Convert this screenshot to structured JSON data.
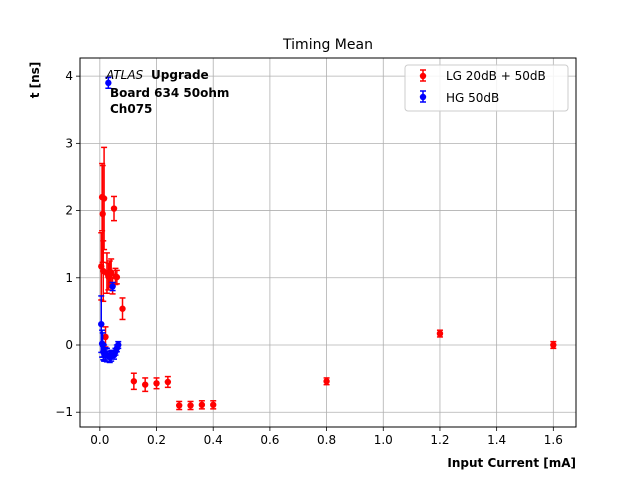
{
  "chart_data": {
    "type": "scatter",
    "title": "Timing Mean",
    "xlabel": "Input Current [mA]",
    "ylabel": "t [ns]",
    "xlim": [
      -0.07,
      1.68
    ],
    "ylim": [
      -1.22,
      4.27
    ],
    "xticks": [
      0.0,
      0.2,
      0.4,
      0.6,
      0.8,
      1.0,
      1.2,
      1.4,
      1.6
    ],
    "xtick_labels": [
      "0.0",
      "0.2",
      "0.4",
      "0.6",
      "0.8",
      "1.0",
      "1.2",
      "1.4",
      "1.6"
    ],
    "yticks": [
      -1,
      0,
      1,
      2,
      3,
      4
    ],
    "ytick_labels": [
      "−1",
      "0",
      "1",
      "2",
      "3",
      "4"
    ],
    "grid": true,
    "legend_position": "top-right",
    "annotation": {
      "italic_part": "ATLAS",
      "bold_part": "Upgrade",
      "line2": "Board 634 50ohm",
      "line3": "Ch075"
    },
    "series": [
      {
        "name": "LG 20dB + 50dB",
        "color": "#ff0000",
        "x": [
          0.005,
          0.008,
          0.01,
          0.012,
          0.015,
          0.02,
          0.025,
          0.03,
          0.035,
          0.04,
          0.045,
          0.05,
          0.055,
          0.06,
          0.08,
          0.12,
          0.16,
          0.2,
          0.24,
          0.28,
          0.32,
          0.36,
          0.4,
          0.8,
          1.2,
          1.6
        ],
        "y": [
          1.17,
          2.2,
          1.95,
          1.1,
          2.18,
          0.12,
          1.07,
          1.02,
          1.05,
          1.08,
          0.88,
          2.03,
          1.02,
          1.01,
          0.54,
          -0.54,
          -0.59,
          -0.57,
          -0.55,
          -0.9,
          -0.9,
          -0.89,
          -0.89,
          -0.54,
          0.17,
          0.0
        ],
        "yerr": [
          0.5,
          0.5,
          0.72,
          0.45,
          0.76,
          0.15,
          0.3,
          0.2,
          0.2,
          0.2,
          0.12,
          0.18,
          0.12,
          0.1,
          0.16,
          0.12,
          0.1,
          0.08,
          0.08,
          0.06,
          0.06,
          0.06,
          0.06,
          0.05,
          0.05,
          0.05
        ]
      },
      {
        "name": "HG 50dB",
        "color": "#0000ff",
        "x": [
          0.005,
          0.008,
          0.01,
          0.012,
          0.015,
          0.02,
          0.025,
          0.03,
          0.035,
          0.04,
          0.045,
          0.05,
          0.055,
          0.06,
          0.065
        ],
        "y": [
          0.31,
          0.02,
          0.0,
          -0.1,
          -0.12,
          -0.14,
          -0.15,
          3.9,
          -0.18,
          -0.16,
          0.87,
          -0.15,
          -0.1,
          -0.05,
          0.0
        ],
        "yerr": [
          0.42,
          0.2,
          0.18,
          0.12,
          0.12,
          0.1,
          0.1,
          0.08,
          0.08,
          0.08,
          0.06,
          0.06,
          0.05,
          0.05,
          0.05
        ]
      }
    ]
  }
}
